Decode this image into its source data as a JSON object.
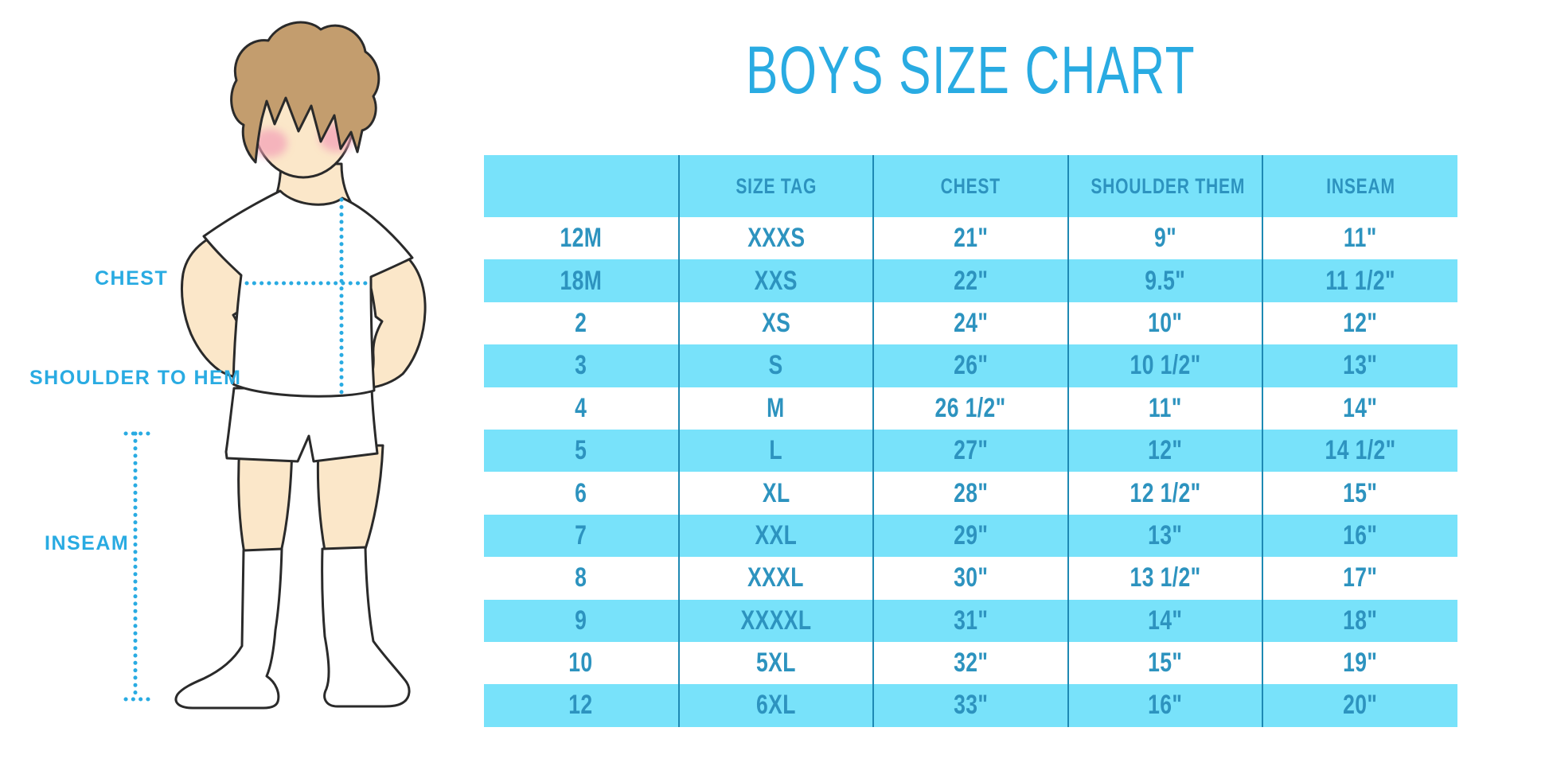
{
  "chart_data": {
    "type": "table",
    "title": "BOYS SIZE CHART",
    "columns": [
      "",
      "SIZE TAG",
      "CHEST",
      "SHOULDER THEM",
      "INSEAM"
    ],
    "rows": [
      [
        "12M",
        "XXXS",
        "21\"",
        "9\"",
        "11\""
      ],
      [
        "18M",
        "XXS",
        "22\"",
        "9.5\"",
        "11 1/2\""
      ],
      [
        "2",
        "XS",
        "24\"",
        "10\"",
        "12\""
      ],
      [
        "3",
        "S",
        "26\"",
        "10 1/2\"",
        "13\""
      ],
      [
        "4",
        "M",
        "26 1/2\"",
        "11\"",
        "14\""
      ],
      [
        "5",
        "L",
        "27\"",
        "12\"",
        "14 1/2\""
      ],
      [
        "6",
        "XL",
        "28\"",
        "12 1/2\"",
        "15\""
      ],
      [
        "7",
        "XXL",
        "29\"",
        "13\"",
        "16\""
      ],
      [
        "8",
        "XXXL",
        "30\"",
        "13 1/2\"",
        "17\""
      ],
      [
        "9",
        "XXXXL",
        "31\"",
        "14\"",
        "18\""
      ],
      [
        "10",
        "5XL",
        "32\"",
        "15\"",
        "19\""
      ],
      [
        "12",
        "6XL",
        "33\"",
        "16\"",
        "20\""
      ]
    ],
    "layout": {
      "striping": "header and even data rows light blue, odd data rows white",
      "grid": "vertical column dividers only",
      "legend_position": "none"
    }
  },
  "figure_labels": {
    "chest": "CHEST",
    "shoulder_to_hem": "SHOULDER TO HEM",
    "inseam": "INSEAM"
  },
  "colors": {
    "accent": "#29ABE2",
    "stripe": "#78E2FA",
    "table_text": "#2D93BF",
    "divider": "#1E89B3",
    "skin": "#FBE7C9",
    "hair": "#C39D6E",
    "blush": "#F3A3B8",
    "outline": "#2A2A2A"
  }
}
